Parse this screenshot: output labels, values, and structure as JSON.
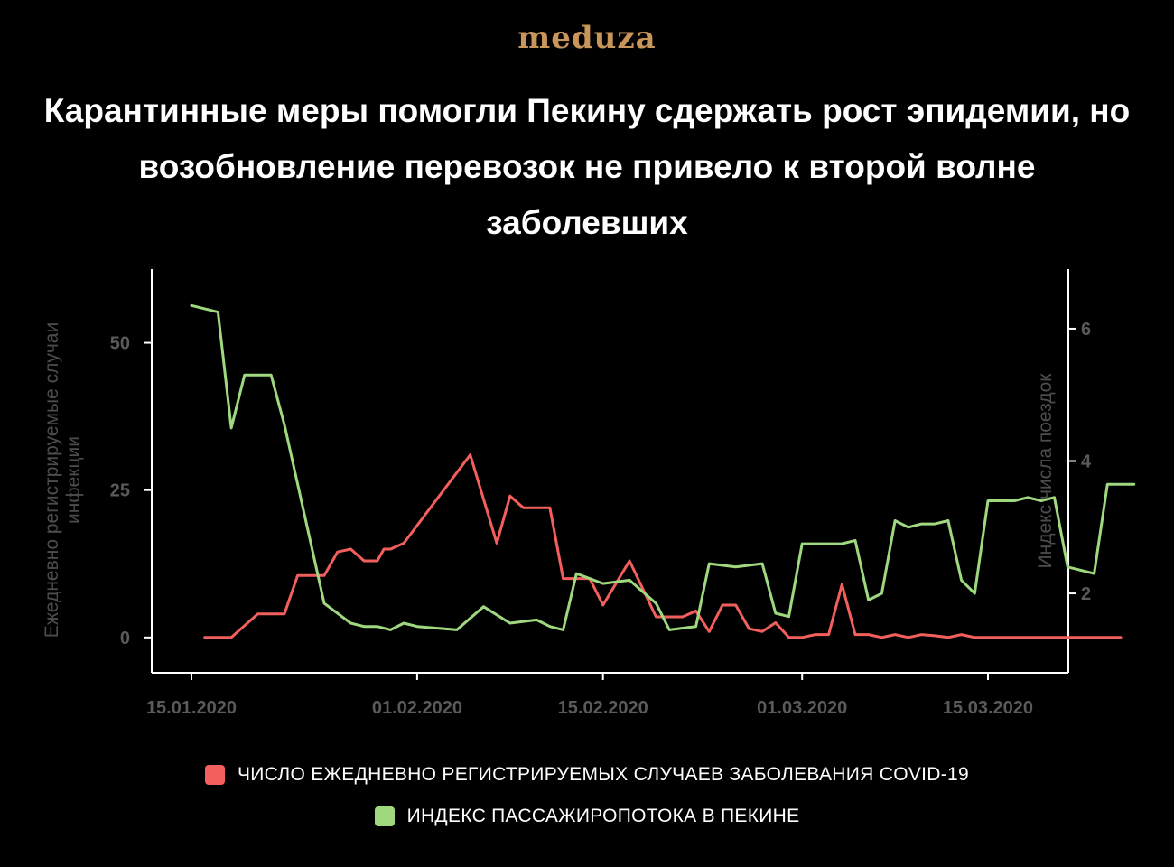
{
  "brand": {
    "logo_text": "meduza",
    "logo_color": "#c8955a"
  },
  "title": "Карантинные меры помогли Пекину сдержать рост эпидемии, но возобновление перевозок не привело к второй волне заболевших",
  "colors": {
    "cases": "#f25f5c",
    "mobility": "#9fd87f",
    "axis": "#ffffff",
    "muted": "#5a5a5a"
  },
  "chart_data": {
    "type": "line",
    "x_start": "2020-01-15",
    "x_ticks": [
      "15.01.2020",
      "01.02.2020",
      "15.02.2020",
      "01.03.2020",
      "15.03.2020"
    ],
    "left_axis": {
      "label": "Ежедневно регистрируемые случаи инфекции",
      "ticks": [
        0,
        25,
        50
      ],
      "range": [
        -6,
        62.5
      ]
    },
    "right_axis": {
      "label": "Индекс числа поездок",
      "ticks": [
        2,
        4,
        6
      ],
      "range": [
        0.8,
        6.9
      ]
    },
    "series": [
      {
        "name": "ЧИСЛО ЕЖЕДНЕВНО РЕГИСТРИРУЕМЫХ СЛУЧАЕВ ЗАБОЛЕВАНИЯ COVID-19",
        "axis": "left",
        "points": [
          [
            "2020-01-16",
            0
          ],
          [
            "2020-01-18",
            0
          ],
          [
            "2020-01-20",
            4
          ],
          [
            "2020-01-22",
            4
          ],
          [
            "2020-01-23",
            10.5
          ],
          [
            "2020-01-25",
            10.5
          ],
          [
            "2020-01-26",
            14.5
          ],
          [
            "2020-01-27",
            15
          ],
          [
            "2020-01-28",
            13
          ],
          [
            "2020-01-29",
            13
          ],
          [
            "2020-01-29.5",
            15
          ],
          [
            "2020-01-30",
            15
          ],
          [
            "2020-01-31",
            16
          ],
          [
            "2020-02-05",
            31
          ],
          [
            "2020-02-07",
            16
          ],
          [
            "2020-02-08",
            24
          ],
          [
            "2020-02-09",
            22
          ],
          [
            "2020-02-11",
            22
          ],
          [
            "2020-02-12",
            10
          ],
          [
            "2020-02-14",
            10
          ],
          [
            "2020-02-15",
            5.5
          ],
          [
            "2020-02-17",
            13
          ],
          [
            "2020-02-19",
            3.5
          ],
          [
            "2020-02-21",
            3.5
          ],
          [
            "2020-02-22",
            4.5
          ],
          [
            "2020-02-23",
            1
          ],
          [
            "2020-02-24",
            5.5
          ],
          [
            "2020-02-25",
            5.5
          ],
          [
            "2020-02-26",
            1.5
          ],
          [
            "2020-02-27",
            1
          ],
          [
            "2020-02-28",
            2.5
          ],
          [
            "2020-02-29",
            0
          ],
          [
            "2020-03-01",
            0
          ],
          [
            "2020-03-02",
            0.5
          ],
          [
            "2020-03-03",
            0.5
          ],
          [
            "2020-03-04",
            9
          ],
          [
            "2020-03-05",
            0.5
          ],
          [
            "2020-03-06",
            0.5
          ],
          [
            "2020-03-07",
            0
          ],
          [
            "2020-03-08",
            0.5
          ],
          [
            "2020-03-09",
            0
          ],
          [
            "2020-03-10",
            0.5
          ],
          [
            "2020-03-11",
            0.3
          ],
          [
            "2020-03-12",
            0
          ],
          [
            "2020-03-13",
            0.5
          ],
          [
            "2020-03-14",
            0
          ],
          [
            "2020-03-25",
            0
          ]
        ]
      },
      {
        "name": "ИНДЕКС ПАССАЖИРОПОТОКА В ПЕКИНЕ",
        "axis": "right",
        "points": [
          [
            "2020-01-15",
            6.35
          ],
          [
            "2020-01-17",
            6.25
          ],
          [
            "2020-01-18",
            4.5
          ],
          [
            "2020-01-19",
            5.3
          ],
          [
            "2020-01-21",
            5.3
          ],
          [
            "2020-01-22",
            4.55
          ],
          [
            "2020-01-25",
            1.85
          ],
          [
            "2020-01-27",
            1.55
          ],
          [
            "2020-01-28",
            1.5
          ],
          [
            "2020-01-29",
            1.5
          ],
          [
            "2020-01-30",
            1.45
          ],
          [
            "2020-01-31",
            1.55
          ],
          [
            "2020-02-01",
            1.5
          ],
          [
            "2020-02-04",
            1.45
          ],
          [
            "2020-02-06",
            1.8
          ],
          [
            "2020-02-08",
            1.55
          ],
          [
            "2020-02-10",
            1.6
          ],
          [
            "2020-02-11",
            1.5
          ],
          [
            "2020-02-12",
            1.45
          ],
          [
            "2020-02-13",
            2.3
          ],
          [
            "2020-02-15",
            2.15
          ],
          [
            "2020-02-17",
            2.2
          ],
          [
            "2020-02-19",
            1.85
          ],
          [
            "2020-02-20",
            1.45
          ],
          [
            "2020-02-22",
            1.5
          ],
          [
            "2020-02-23",
            2.45
          ],
          [
            "2020-02-25",
            2.4
          ],
          [
            "2020-02-27",
            2.45
          ],
          [
            "2020-02-28",
            1.7
          ],
          [
            "2020-02-29",
            1.65
          ],
          [
            "2020-03-01",
            2.75
          ],
          [
            "2020-03-04",
            2.75
          ],
          [
            "2020-03-05",
            2.8
          ],
          [
            "2020-03-06",
            1.9
          ],
          [
            "2020-03-07",
            2.0
          ],
          [
            "2020-03-08",
            3.1
          ],
          [
            "2020-03-09",
            3.0
          ],
          [
            "2020-03-10",
            3.05
          ],
          [
            "2020-03-11",
            3.05
          ],
          [
            "2020-03-12",
            3.1
          ],
          [
            "2020-03-13",
            2.2
          ],
          [
            "2020-03-14",
            2.0
          ],
          [
            "2020-03-15",
            3.4
          ],
          [
            "2020-03-17",
            3.4
          ],
          [
            "2020-03-18",
            3.45
          ],
          [
            "2020-03-19",
            3.4
          ],
          [
            "2020-03-20",
            3.45
          ],
          [
            "2020-03-21",
            2.4
          ],
          [
            "2020-03-23",
            2.3
          ],
          [
            "2020-03-24",
            3.65
          ],
          [
            "2020-03-26",
            3.65
          ]
        ]
      }
    ]
  }
}
